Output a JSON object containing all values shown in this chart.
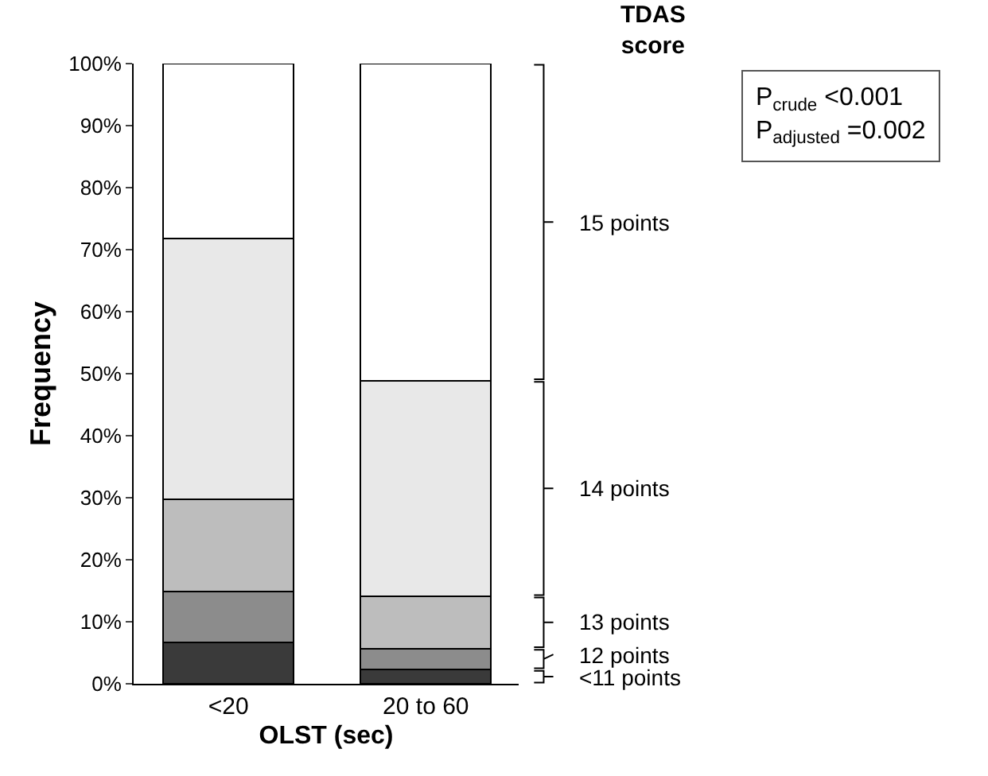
{
  "chart_data": {
    "type": "bar",
    "stacked": true,
    "categories": [
      "<20",
      "20 to 60"
    ],
    "xlabel": "OLST (sec)",
    "ylabel": "Frequency",
    "legend_title": "TDAS score",
    "series": [
      {
        "name": "<11 points",
        "color": "#3a3a3a",
        "values": [
          6.7,
          2.3
        ]
      },
      {
        "name": "12 points",
        "color": "#8c8c8c",
        "values": [
          8.2,
          3.4
        ]
      },
      {
        "name": "13 points",
        "color": "#bdbdbd",
        "values": [
          14.8,
          8.4
        ]
      },
      {
        "name": "14 points",
        "color": "#e8e8e8",
        "values": [
          42.1,
          34.8
        ]
      },
      {
        "name": "15 points",
        "color": "#ffffff",
        "values": [
          28.2,
          51.1
        ]
      }
    ],
    "ylim": [
      0,
      100
    ],
    "yticks": [
      {
        "value": 0,
        "label": "0%"
      },
      {
        "value": 10,
        "label": "10%"
      },
      {
        "value": 20,
        "label": "20%"
      },
      {
        "value": 30,
        "label": "30%"
      },
      {
        "value": 40,
        "label": "40%"
      },
      {
        "value": 50,
        "label": "50%"
      },
      {
        "value": 60,
        "label": "60%"
      },
      {
        "value": 70,
        "label": "70%"
      },
      {
        "value": 80,
        "label": "80%"
      },
      {
        "value": 90,
        "label": "90%"
      },
      {
        "value": 100,
        "label": "100%"
      }
    ],
    "legend": "right",
    "annotations": [
      "P$_{crude}$ <0.001",
      "P$_{adjusted}$ =0.002"
    ]
  }
}
